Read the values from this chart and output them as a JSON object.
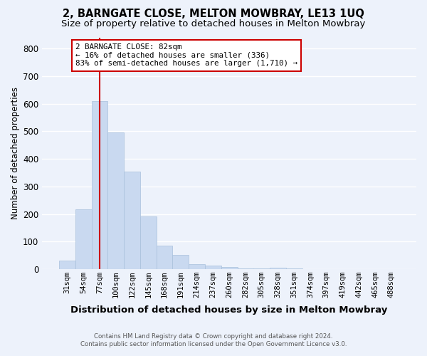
{
  "title1": "2, BARNGATE CLOSE, MELTON MOWBRAY, LE13 1UQ",
  "title2": "Size of property relative to detached houses in Melton Mowbray",
  "xlabel": "Distribution of detached houses by size in Melton Mowbray",
  "ylabel": "Number of detached properties",
  "categories": [
    "31sqm",
    "54sqm",
    "77sqm",
    "100sqm",
    "122sqm",
    "145sqm",
    "168sqm",
    "191sqm",
    "214sqm",
    "237sqm",
    "260sqm",
    "282sqm",
    "305sqm",
    "328sqm",
    "351sqm",
    "374sqm",
    "397sqm",
    "419sqm",
    "442sqm",
    "465sqm",
    "488sqm"
  ],
  "values": [
    30,
    218,
    610,
    495,
    355,
    190,
    85,
    52,
    18,
    12,
    7,
    4,
    4,
    5,
    4,
    0,
    0,
    0,
    0,
    0,
    0
  ],
  "bar_color": "#c9d9f0",
  "bar_edge_color": "#a8c0dc",
  "property_line_x": 2,
  "annotation_line1": "2 BARNGATE CLOSE: 82sqm",
  "annotation_line2": "← 16% of detached houses are smaller (336)",
  "annotation_line3": "83% of semi-detached houses are larger (1,710) →",
  "annotation_box_color": "#ffffff",
  "annotation_box_edge": "#cc0000",
  "line_color": "#cc0000",
  "footer1": "Contains HM Land Registry data © Crown copyright and database right 2024.",
  "footer2": "Contains public sector information licensed under the Open Government Licence v3.0.",
  "ylim": [
    0,
    840
  ],
  "background_color": "#edf2fb",
  "plot_bg_color": "#edf2fb",
  "grid_color": "#ffffff",
  "title_fontsize": 10.5,
  "subtitle_fontsize": 9.5,
  "tick_fontsize": 7.5,
  "ylabel_fontsize": 8.5,
  "xlabel_fontsize": 9.5,
  "annotation_fontsize": 7.8
}
